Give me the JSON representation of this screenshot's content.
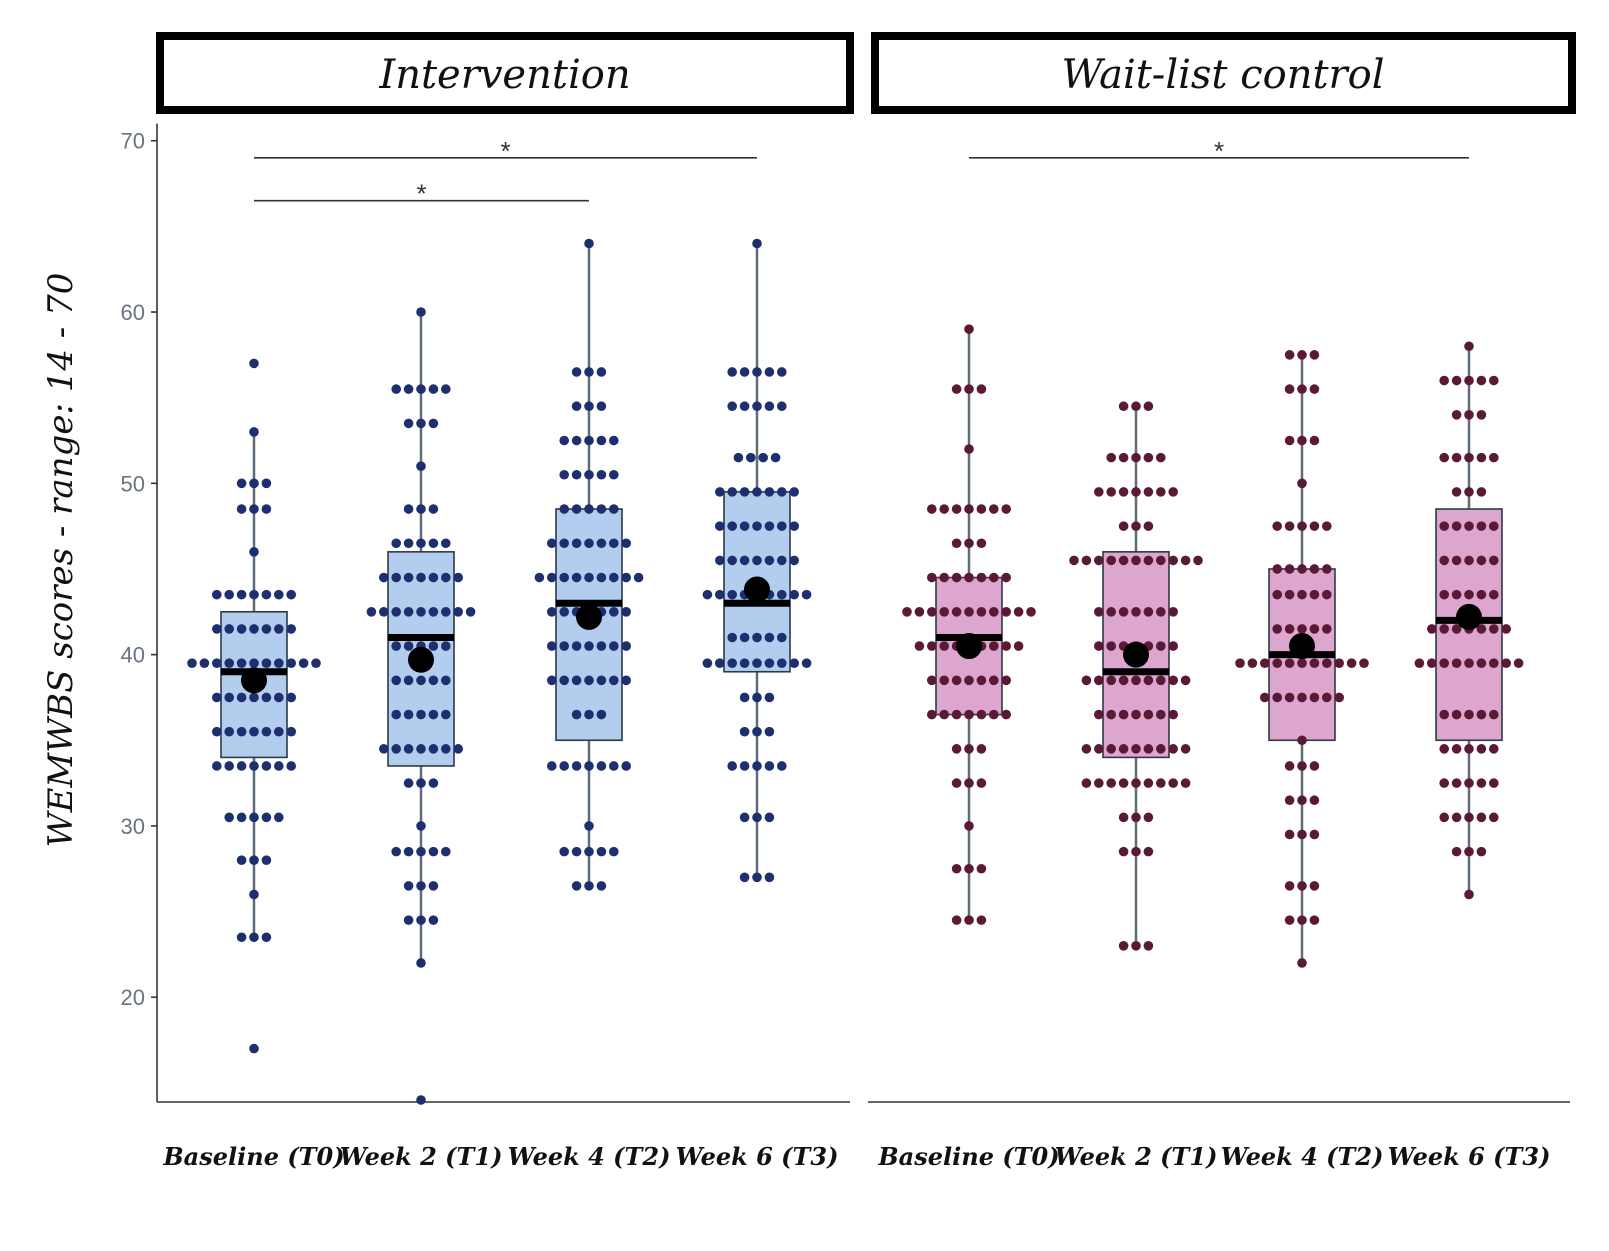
{
  "chart_data": {
    "type": "box",
    "ylabel": "WEMWBS scores - range: 14 - 70",
    "yticks": [
      20,
      30,
      40,
      50,
      60,
      70
    ],
    "ylim": [
      12,
      71
    ],
    "categories": [
      "Baseline (T0)",
      "Week 2 (T1)",
      "Week 4 (T2)",
      "Week 6 (T3)"
    ],
    "panels": [
      {
        "label": "Intervention",
        "box_color": "#b3cdee",
        "dot_color": "#1d2f6f",
        "boxes": [
          {
            "q1": 34,
            "median": 39,
            "q3": 42.5,
            "whisker_low": 23.5,
            "whisker_high": 53,
            "mean": 38.5,
            "outliers": [
              17
            ]
          },
          {
            "q1": 33.5,
            "median": 41,
            "q3": 46,
            "whisker_low": 22,
            "whisker_high": 60,
            "mean": 39.7,
            "outliers": [
              14
            ]
          },
          {
            "q1": 35,
            "median": 43,
            "q3": 48.5,
            "whisker_low": 26.5,
            "whisker_high": 64,
            "mean": 42.2,
            "outliers": []
          },
          {
            "q1": 39,
            "median": 43,
            "q3": 49.5,
            "whisker_low": 27,
            "whisker_high": 64,
            "mean": 43.8,
            "outliers": []
          }
        ],
        "significance": [
          {
            "from": 0,
            "to": 3,
            "y": 69,
            "label": "*"
          },
          {
            "from": 0,
            "to": 2,
            "y": 66.5,
            "label": "*"
          }
        ]
      },
      {
        "label": "Wait-list control",
        "box_color": "#dca6cf",
        "dot_color": "#5a1a35",
        "boxes": [
          {
            "q1": 36.5,
            "median": 41,
            "q3": 44.5,
            "whisker_low": 24.5,
            "whisker_high": 59,
            "mean": 40.5,
            "outliers": []
          },
          {
            "q1": 34,
            "median": 39,
            "q3": 46,
            "whisker_low": 23,
            "whisker_high": 54.5,
            "mean": 40,
            "outliers": []
          },
          {
            "q1": 35,
            "median": 40,
            "q3": 45,
            "whisker_low": 22,
            "whisker_high": 57.5,
            "mean": 40.5,
            "outliers": []
          },
          {
            "q1": 35,
            "median": 42,
            "q3": 48.5,
            "whisker_low": 26,
            "whisker_high": 58,
            "mean": 42.2,
            "outliers": []
          }
        ],
        "significance": [
          {
            "from": 0,
            "to": 3,
            "y": 69,
            "label": "*"
          }
        ]
      }
    ],
    "dots": [
      [
        [
          57
        ],
        [
          53
        ],
        [
          50,
          50,
          50
        ],
        [
          48.5,
          48.5,
          48.5
        ],
        [
          46
        ],
        [
          43.5,
          43.5,
          43.5,
          43.5,
          43.5,
          43.5,
          43.5
        ],
        [
          41.5,
          41.5,
          41.5,
          41.5,
          41.5,
          41.5,
          41.5
        ],
        [
          39.5,
          39.5,
          39.5,
          39.5,
          39.5,
          39.5,
          39.5,
          39.5,
          39.5,
          39.5,
          39.5
        ],
        [
          37.5,
          37.5,
          37.5,
          37.5,
          37.5,
          37.5,
          37.5
        ],
        [
          35.5,
          35.5,
          35.5,
          35.5,
          35.5,
          35.5,
          35.5
        ],
        [
          33.5,
          33.5,
          33.5,
          33.5,
          33.5,
          33.5,
          33.5
        ],
        [
          30.5,
          30.5,
          30.5,
          30.5,
          30.5
        ],
        [
          28,
          28,
          28
        ],
        [
          26
        ],
        [
          23.5,
          23.5,
          23.5
        ],
        [
          17
        ]
      ],
      [
        [
          60
        ],
        [
          55.5,
          55.5,
          55.5,
          55.5,
          55.5
        ],
        [
          53.5,
          53.5,
          53.5
        ],
        [
          51
        ],
        [
          48.5,
          48.5,
          48.5
        ],
        [
          46.5,
          46.5,
          46.5,
          46.5,
          46.5
        ],
        [
          44.5,
          44.5,
          44.5,
          44.5,
          44.5,
          44.5,
          44.5
        ],
        [
          42.5,
          42.5,
          42.5,
          42.5,
          42.5,
          42.5,
          42.5,
          42.5,
          42.5
        ],
        [
          40.5,
          40.5,
          40.5,
          40.5,
          40.5
        ],
        [
          38.5,
          38.5,
          38.5,
          38.5,
          38.5
        ],
        [
          36.5,
          36.5,
          36.5,
          36.5,
          36.5
        ],
        [
          34.5,
          34.5,
          34.5,
          34.5,
          34.5,
          34.5,
          34.5
        ],
        [
          32.5,
          32.5,
          32.5
        ],
        [
          30
        ],
        [
          28.5,
          28.5,
          28.5,
          28.5,
          28.5
        ],
        [
          26.5,
          26.5,
          26.5
        ],
        [
          24.5,
          24.5,
          24.5
        ],
        [
          22
        ],
        [
          14
        ]
      ],
      [
        [
          64
        ],
        [
          56.5,
          56.5,
          56.5
        ],
        [
          54.5,
          54.5,
          54.5
        ],
        [
          52.5,
          52.5,
          52.5,
          52.5,
          52.5
        ],
        [
          50.5,
          50.5,
          50.5,
          50.5,
          50.5
        ],
        [
          48.5,
          48.5,
          48.5,
          48.5,
          48.5
        ],
        [
          46.5,
          46.5,
          46.5,
          46.5,
          46.5,
          46.5,
          46.5
        ],
        [
          44.5,
          44.5,
          44.5,
          44.5,
          44.5,
          44.5,
          44.5,
          44.5,
          44.5
        ],
        [
          42.5,
          42.5,
          42.5,
          42.5,
          42.5,
          42.5,
          42.5
        ],
        [
          40.5,
          40.5,
          40.5,
          40.5,
          40.5,
          40.5,
          40.5
        ],
        [
          38.5,
          38.5,
          38.5,
          38.5,
          38.5,
          38.5,
          38.5
        ],
        [
          36.5,
          36.5,
          36.5
        ],
        [
          33.5,
          33.5,
          33.5,
          33.5,
          33.5,
          33.5,
          33.5
        ],
        [
          30
        ],
        [
          28.5,
          28.5,
          28.5,
          28.5,
          28.5
        ],
        [
          26.5,
          26.5,
          26.5
        ]
      ],
      [
        [
          64
        ],
        [
          56.5,
          56.5,
          56.5,
          56.5,
          56.5
        ],
        [
          54.5,
          54.5,
          54.5,
          54.5,
          54.5
        ],
        [
          51.5,
          51.5,
          51.5,
          51.5
        ],
        [
          49.5,
          49.5,
          49.5,
          49.5,
          49.5,
          49.5,
          49.5
        ],
        [
          47.5,
          47.5,
          47.5,
          47.5,
          47.5,
          47.5,
          47.5
        ],
        [
          45.5,
          45.5,
          45.5,
          45.5,
          45.5,
          45.5,
          45.5
        ],
        [
          43.5,
          43.5,
          43.5,
          43.5,
          43.5,
          43.5,
          43.5,
          43.5,
          43.5
        ],
        [
          41,
          41,
          41,
          41,
          41
        ],
        [
          39.5,
          39.5,
          39.5,
          39.5,
          39.5,
          39.5,
          39.5,
          39.5,
          39.5
        ],
        [
          37.5,
          37.5,
          37.5
        ],
        [
          35.5,
          35.5,
          35.5
        ],
        [
          33.5,
          33.5,
          33.5,
          33.5,
          33.5
        ],
        [
          30.5,
          30.5,
          30.5
        ],
        [
          27,
          27,
          27
        ]
      ],
      [
        [
          59
        ],
        [
          55.5,
          55.5,
          55.5
        ],
        [
          52
        ],
        [
          48.5,
          48.5,
          48.5,
          48.5,
          48.5,
          48.5,
          48.5
        ],
        [
          46.5,
          46.5,
          46.5
        ],
        [
          44.5,
          44.5,
          44.5,
          44.5,
          44.5,
          44.5,
          44.5
        ],
        [
          42.5,
          42.5,
          42.5,
          42.5,
          42.5,
          42.5,
          42.5,
          42.5,
          42.5,
          42.5,
          42.5
        ],
        [
          40.5,
          40.5,
          40.5,
          40.5,
          40.5,
          40.5,
          40.5,
          40.5,
          40.5
        ],
        [
          38.5,
          38.5,
          38.5,
          38.5,
          38.5,
          38.5,
          38.5
        ],
        [
          36.5,
          36.5,
          36.5,
          36.5,
          36.5,
          36.5,
          36.5
        ],
        [
          34.5,
          34.5,
          34.5
        ],
        [
          32.5,
          32.5,
          32.5
        ],
        [
          30
        ],
        [
          27.5,
          27.5,
          27.5
        ],
        [
          24.5,
          24.5,
          24.5
        ]
      ],
      [
        [
          54.5,
          54.5,
          54.5
        ],
        [
          51.5,
          51.5,
          51.5,
          51.5,
          51.5
        ],
        [
          49.5,
          49.5,
          49.5,
          49.5,
          49.5,
          49.5,
          49.5
        ],
        [
          47.5,
          47.5,
          47.5
        ],
        [
          45.5,
          45.5,
          45.5,
          45.5,
          45.5,
          45.5,
          45.5,
          45.5,
          45.5,
          45.5,
          45.5
        ],
        [
          42.5,
          42.5,
          42.5,
          42.5,
          42.5,
          42.5,
          42.5
        ],
        [
          40.5,
          40.5,
          40.5,
          40.5,
          40.5,
          40.5,
          40.5
        ],
        [
          38.5,
          38.5,
          38.5,
          38.5,
          38.5,
          38.5,
          38.5,
          38.5,
          38.5
        ],
        [
          36.5,
          36.5,
          36.5,
          36.5,
          36.5,
          36.5,
          36.5
        ],
        [
          34.5,
          34.5,
          34.5,
          34.5,
          34.5,
          34.5,
          34.5,
          34.5,
          34.5
        ],
        [
          32.5,
          32.5,
          32.5,
          32.5,
          32.5,
          32.5,
          32.5,
          32.5,
          32.5
        ],
        [
          30.5,
          30.5,
          30.5
        ],
        [
          28.5,
          28.5,
          28.5
        ],
        [
          23,
          23,
          23
        ]
      ],
      [
        [
          57.5,
          57.5,
          57.5
        ],
        [
          55.5,
          55.5,
          55.5
        ],
        [
          52.5,
          52.5,
          52.5
        ],
        [
          50
        ],
        [
          47.5,
          47.5,
          47.5,
          47.5,
          47.5
        ],
        [
          45,
          45,
          45,
          45,
          45
        ],
        [
          43.5,
          43.5,
          43.5,
          43.5,
          43.5
        ],
        [
          41.5,
          41.5,
          41.5,
          41.5,
          41.5
        ],
        [
          39.5,
          39.5,
          39.5,
          39.5,
          39.5,
          39.5,
          39.5,
          39.5,
          39.5,
          39.5,
          39.5
        ],
        [
          37.5,
          37.5,
          37.5,
          37.5,
          37.5,
          37.5,
          37.5
        ],
        [
          35
        ],
        [
          33.5,
          33.5,
          33.5
        ],
        [
          31.5,
          31.5,
          31.5
        ],
        [
          29.5,
          29.5,
          29.5
        ],
        [
          26.5,
          26.5,
          26.5
        ],
        [
          24.5,
          24.5,
          24.5
        ],
        [
          22
        ]
      ],
      [
        [
          58
        ],
        [
          56,
          56,
          56,
          56,
          56
        ],
        [
          54,
          54,
          54
        ],
        [
          51.5,
          51.5,
          51.5,
          51.5,
          51.5
        ],
        [
          49.5,
          49.5,
          49.5
        ],
        [
          47.5,
          47.5,
          47.5,
          47.5,
          47.5
        ],
        [
          45.5,
          45.5,
          45.5,
          45.5,
          45.5
        ],
        [
          43.5,
          43.5,
          43.5,
          43.5,
          43.5
        ],
        [
          41.5,
          41.5,
          41.5,
          41.5,
          41.5,
          41.5,
          41.5
        ],
        [
          39.5,
          39.5,
          39.5,
          39.5,
          39.5,
          39.5,
          39.5,
          39.5,
          39.5
        ],
        [
          36.5,
          36.5,
          36.5,
          36.5,
          36.5
        ],
        [
          34.5,
          34.5,
          34.5,
          34.5,
          34.5
        ],
        [
          32.5,
          32.5,
          32.5,
          32.5,
          32.5
        ],
        [
          30.5,
          30.5,
          30.5,
          30.5,
          30.5
        ],
        [
          28.5,
          28.5,
          28.5
        ],
        [
          26
        ]
      ]
    ]
  }
}
